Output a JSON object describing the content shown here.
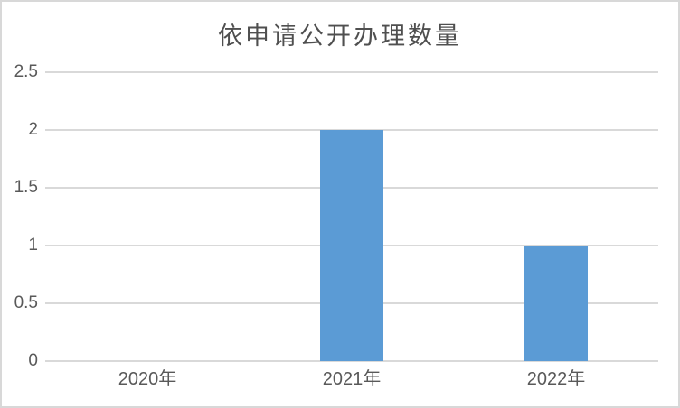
{
  "chart_data": {
    "type": "bar",
    "title": "依申请公开办理数量",
    "categories": [
      "2020年",
      "2021年",
      "2022年"
    ],
    "values": [
      0,
      2,
      1
    ],
    "xlabel": "",
    "ylabel": "",
    "ylim": [
      0,
      2.5
    ],
    "yticks": [
      0,
      0.5,
      1,
      1.5,
      2,
      2.5
    ],
    "ytick_labels": [
      "0",
      "0.5",
      "1",
      "1.5",
      "2",
      "2.5"
    ],
    "grid": true,
    "legend": false,
    "legend_position": "none",
    "bar_color": "#5B9BD5",
    "gridline_color": "#D9D9D9",
    "axis_line_color": "#D9D9D9",
    "tick_label_color": "#595959",
    "title_color": "#4F4F4F",
    "frame_border_color": "#D8D8D8"
  }
}
